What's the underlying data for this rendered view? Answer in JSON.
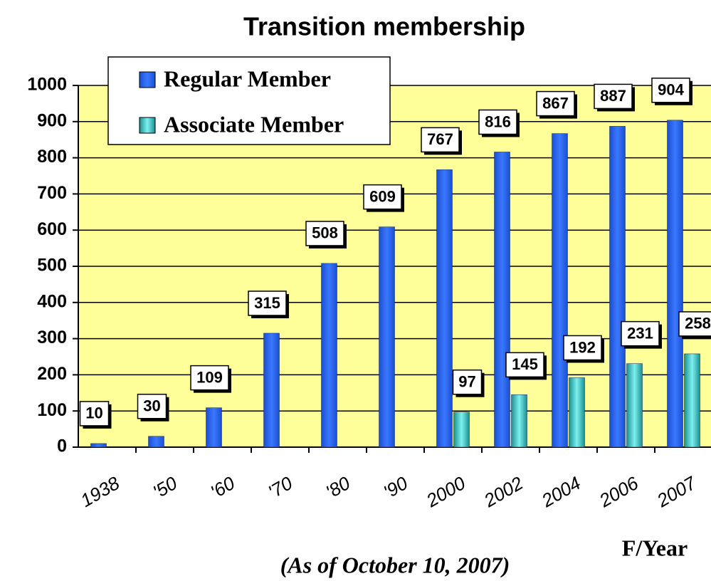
{
  "chart_data": {
    "type": "bar",
    "title": "Transition membership",
    "categories": [
      "1938",
      "'50",
      "'60",
      "'70",
      "'80",
      "'90",
      "2000",
      "2002",
      "2004",
      "2006",
      "2007"
    ],
    "series": [
      {
        "name": "Regular Member",
        "color": "#2e6cf2",
        "values": [
          10,
          30,
          109,
          315,
          508,
          609,
          767,
          816,
          867,
          887,
          904
        ]
      },
      {
        "name": "Associate Member",
        "color": "#3cc6c6",
        "values": [
          null,
          null,
          null,
          null,
          null,
          null,
          97,
          145,
          192,
          231,
          258
        ]
      }
    ],
    "ylim": [
      0,
      1000
    ],
    "yticks": [
      0,
      100,
      200,
      300,
      400,
      500,
      600,
      700,
      800,
      900,
      1000
    ],
    "grid": true,
    "legend": "upper left",
    "plot_background": "#ffff99",
    "x_label": "F/Year",
    "note": "(As of October 10, 2007)"
  }
}
